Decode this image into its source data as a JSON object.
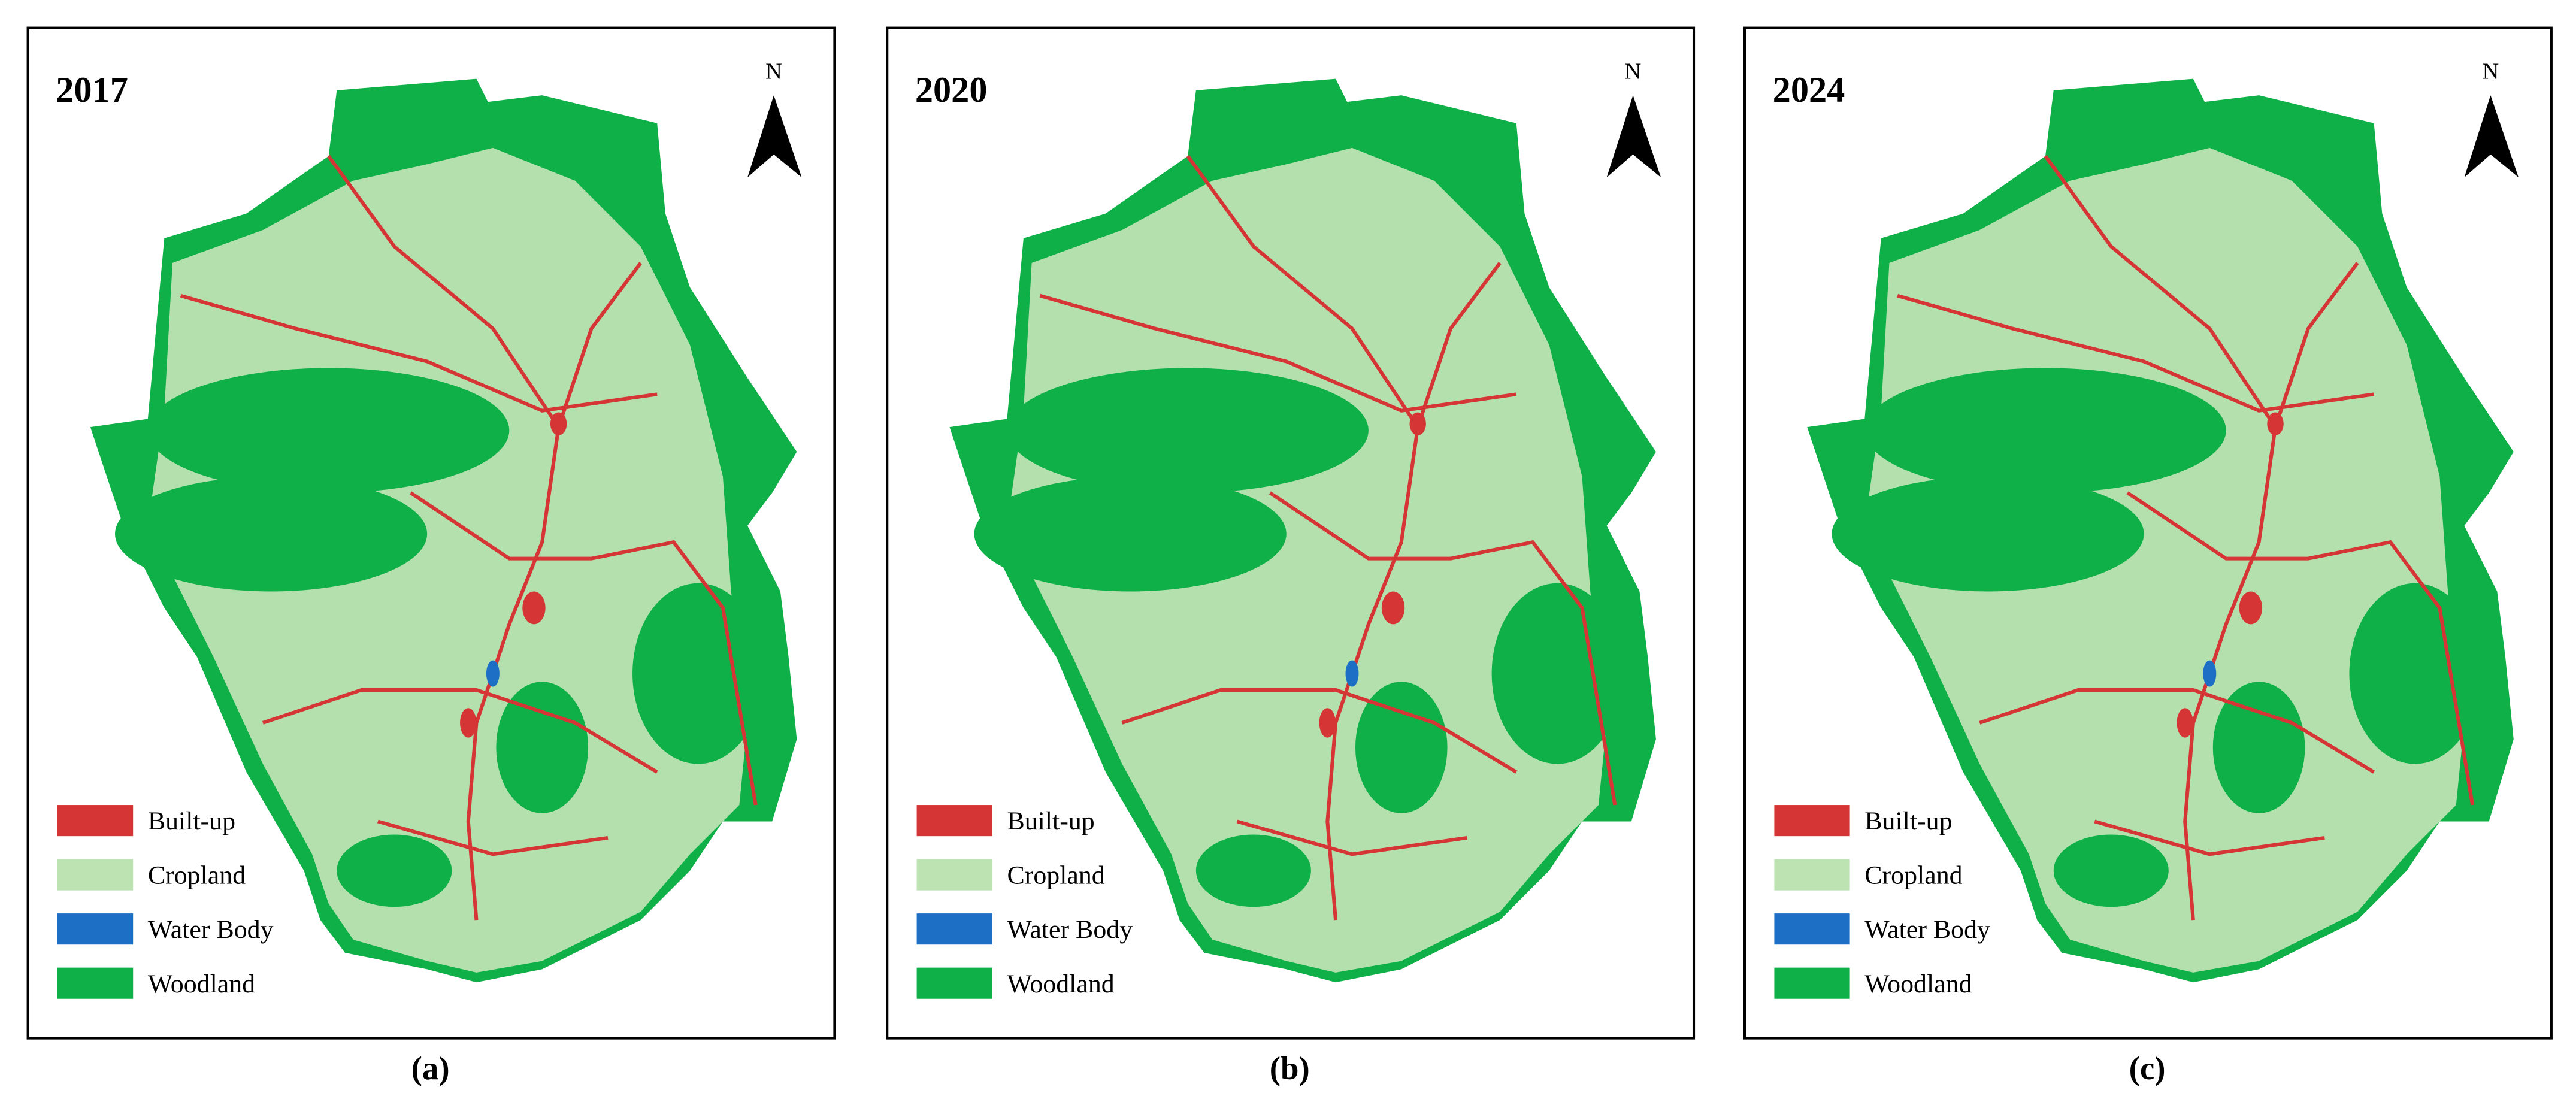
{
  "legend": [
    {
      "label": "Built-up",
      "color": "#d63535"
    },
    {
      "label": "Cropland",
      "color": "#bde3b3"
    },
    {
      "label": "Water Body",
      "color": "#1d6fc6"
    },
    {
      "label": "Woodland",
      "color": "#10b048"
    }
  ],
  "north": "N",
  "panels": [
    {
      "year": "2017",
      "caption": "(a)"
    },
    {
      "year": "2020",
      "caption": "(b)"
    },
    {
      "year": "2024",
      "caption": "(c)"
    }
  ]
}
